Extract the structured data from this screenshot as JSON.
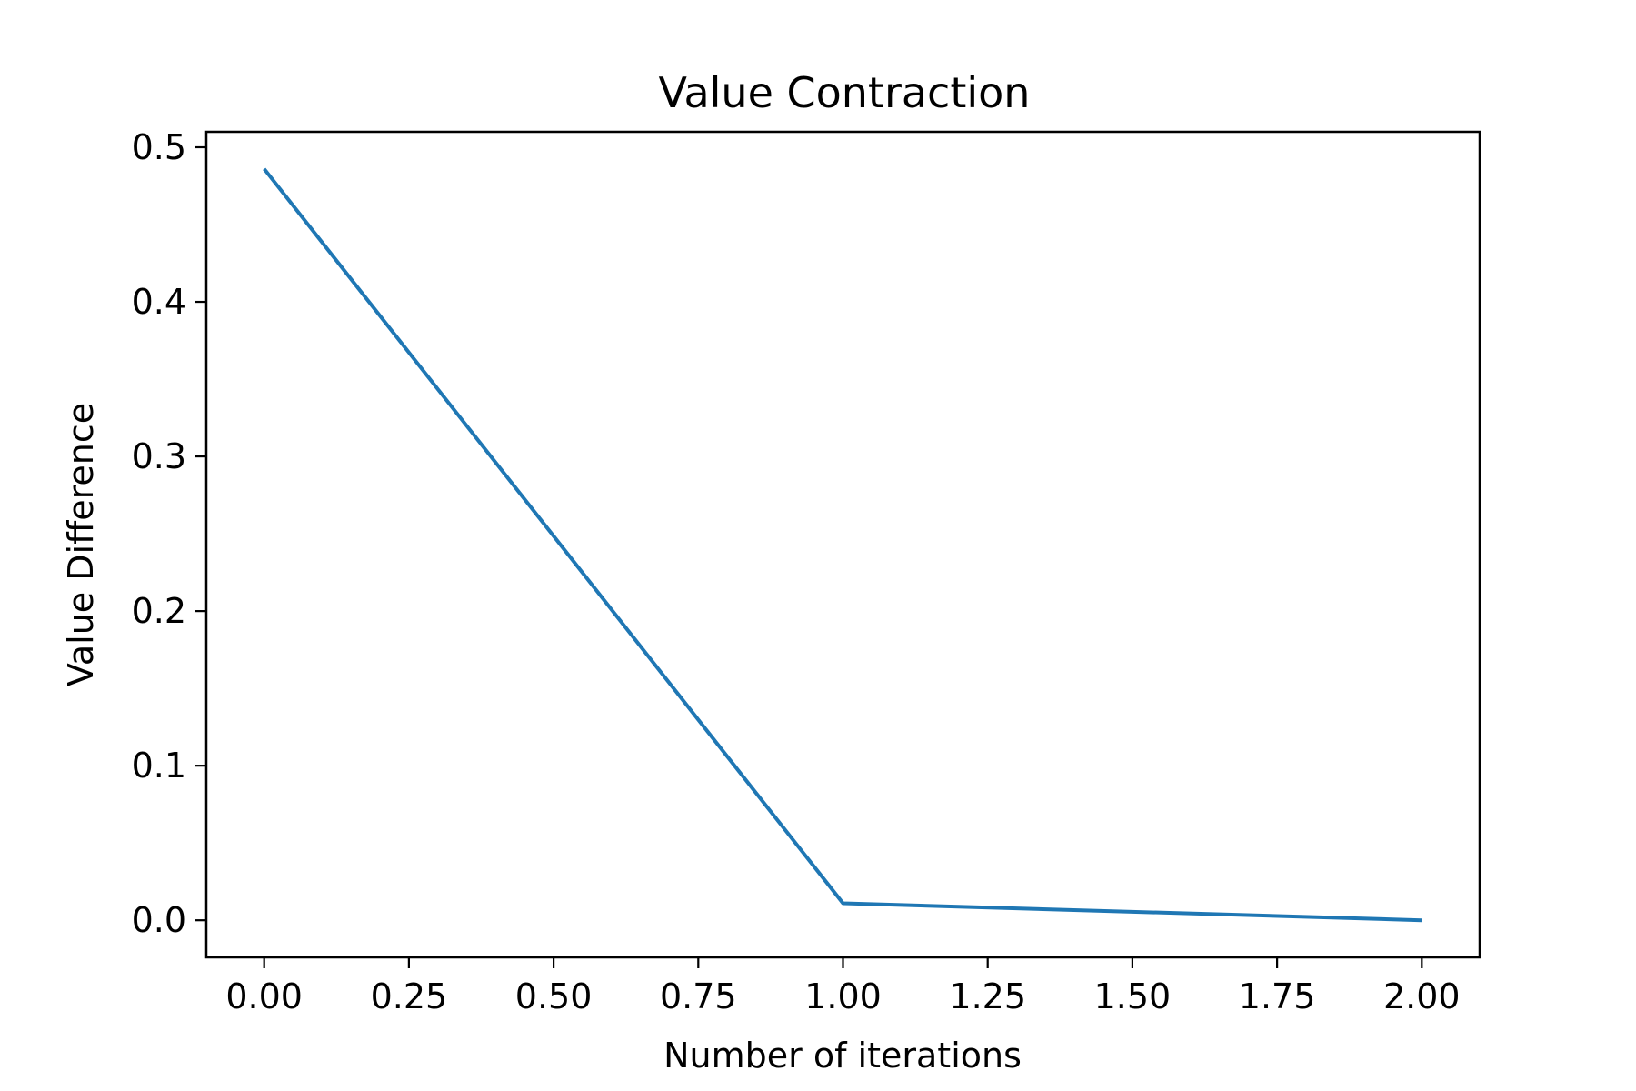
{
  "chart_data": {
    "type": "line",
    "title": "Value Contraction",
    "xlabel": "Number of iterations",
    "ylabel": "Value Difference",
    "xlim": [
      -0.1,
      2.1
    ],
    "ylim": [
      -0.024,
      0.51
    ],
    "xticks": [
      0.0,
      0.25,
      0.5,
      0.75,
      1.0,
      1.25,
      1.5,
      1.75,
      2.0
    ],
    "xtick_labels": [
      "0.00",
      "0.25",
      "0.50",
      "0.75",
      "1.00",
      "1.25",
      "1.50",
      "1.75",
      "2.00"
    ],
    "yticks": [
      0.0,
      0.1,
      0.2,
      0.3,
      0.4,
      0.5
    ],
    "ytick_labels": [
      "0.0",
      "0.1",
      "0.2",
      "0.3",
      "0.4",
      "0.5"
    ],
    "grid": false,
    "series": [
      {
        "color": "#1f77b4",
        "x": [
          0,
          1,
          2
        ],
        "y": [
          0.486,
          0.011,
          0.0
        ]
      }
    ]
  }
}
